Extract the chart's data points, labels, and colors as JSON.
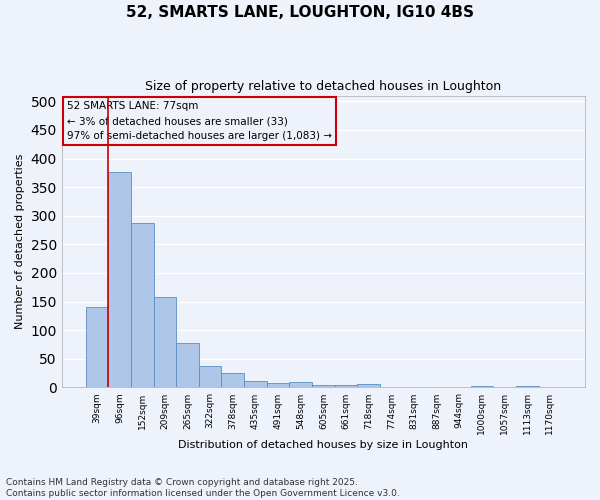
{
  "title": "52, SMARTS LANE, LOUGHTON, IG10 4BS",
  "subtitle": "Size of property relative to detached houses in Loughton",
  "xlabel": "Distribution of detached houses by size in Loughton",
  "ylabel": "Number of detached properties",
  "categories": [
    "39sqm",
    "96sqm",
    "152sqm",
    "209sqm",
    "265sqm",
    "322sqm",
    "378sqm",
    "435sqm",
    "491sqm",
    "548sqm",
    "605sqm",
    "661sqm",
    "718sqm",
    "774sqm",
    "831sqm",
    "887sqm",
    "944sqm",
    "1000sqm",
    "1057sqm",
    "1113sqm",
    "1170sqm"
  ],
  "values": [
    140,
    377,
    288,
    158,
    77,
    38,
    26,
    11,
    7,
    9,
    5,
    5,
    6,
    0,
    0,
    0,
    0,
    3,
    0,
    3,
    0
  ],
  "bar_color": "#aec6e8",
  "bar_edge_color": "#5b8dc4",
  "property_line_x": 0.47,
  "property_line_color": "#cc0000",
  "annotation_text": "52 SMARTS LANE: 77sqm\n← 3% of detached houses are smaller (33)\n97% of semi-detached houses are larger (1,083) →",
  "annotation_box_color": "#cc0000",
  "ylim": [
    0,
    510
  ],
  "yticks": [
    0,
    50,
    100,
    150,
    200,
    250,
    300,
    350,
    400,
    450,
    500
  ],
  "footnote": "Contains HM Land Registry data © Crown copyright and database right 2025.\nContains public sector information licensed under the Open Government Licence v3.0.",
  "background_color": "#eef2fa",
  "grid_color": "#ffffff",
  "title_fontsize": 11,
  "subtitle_fontsize": 9,
  "footnote_fontsize": 6.5
}
